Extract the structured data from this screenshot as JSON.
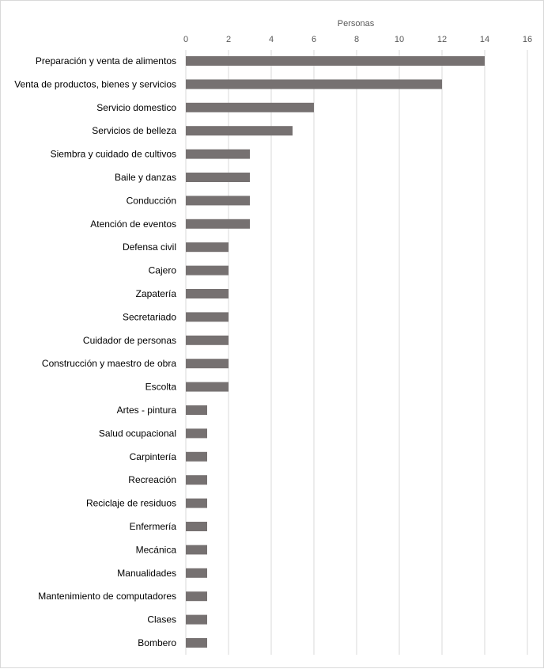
{
  "chart_data": {
    "type": "bar",
    "orientation": "horizontal",
    "xaxis_position": "top",
    "title": "",
    "xlabel": "Personas",
    "ylabel": "",
    "xlim": [
      0,
      16
    ],
    "xticks": [
      0,
      2,
      4,
      6,
      8,
      10,
      12,
      14,
      16
    ],
    "grid": true,
    "legend": "none",
    "bar_color": "#767171",
    "grid_color": "#d9d9d9",
    "categories": [
      "Preparación y venta de alimentos",
      "Venta de productos, bienes y servicios",
      "Servicio domestico",
      "Servicios de belleza",
      "Siembra y cuidado de cultivos",
      "Baile y danzas",
      "Conducción",
      "Atención de eventos",
      "Defensa civil",
      "Cajero",
      "Zapatería",
      "Secretariado",
      "Cuidador de personas",
      "Construcción y maestro de obra",
      "Escolta",
      "Artes - pintura",
      "Salud ocupacional",
      "Carpintería",
      "Recreación",
      "Reciclaje de residuos",
      "Enfermería",
      "Mecánica",
      "Manualidades",
      "Mantenimiento de computadores",
      "Clases",
      "Bombero"
    ],
    "values": [
      14,
      12,
      6,
      5,
      3,
      3,
      3,
      3,
      2,
      2,
      2,
      2,
      2,
      2,
      2,
      1,
      1,
      1,
      1,
      1,
      1,
      1,
      1,
      1,
      1,
      1
    ]
  }
}
